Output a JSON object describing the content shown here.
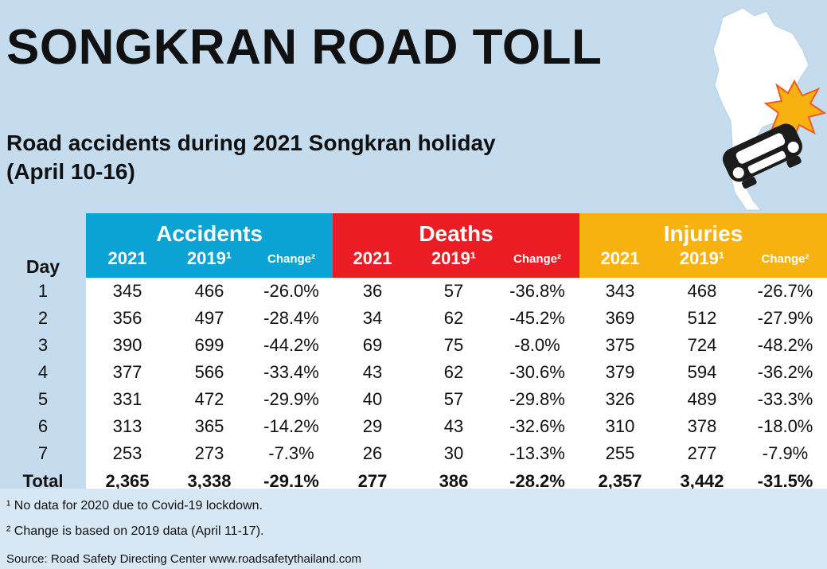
{
  "title": "SONGKRAN ROAD TOLL",
  "subtitle_line1": "Road accidents during 2021 Songkran holiday",
  "subtitle_line2": "(April 10-16)",
  "chart_data": {
    "type": "table",
    "groups": [
      "Accidents",
      "Deaths",
      "Injuries"
    ],
    "day_header": "Day",
    "subheaders": [
      "2021",
      "2019¹",
      "Change²"
    ],
    "rows": [
      {
        "day": "1",
        "cells": [
          "345",
          "466",
          "-26.0%",
          "36",
          "57",
          "-36.8%",
          "343",
          "468",
          "-26.7%"
        ]
      },
      {
        "day": "2",
        "cells": [
          "356",
          "497",
          "-28.4%",
          "34",
          "62",
          "-45.2%",
          "369",
          "512",
          "-27.9%"
        ]
      },
      {
        "day": "3",
        "cells": [
          "390",
          "699",
          "-44.2%",
          "69",
          "75",
          "-8.0%",
          "375",
          "724",
          "-48.2%"
        ]
      },
      {
        "day": "4",
        "cells": [
          "377",
          "566",
          "-33.4%",
          "43",
          "62",
          "-30.6%",
          "379",
          "594",
          "-36.2%"
        ]
      },
      {
        "day": "5",
        "cells": [
          "331",
          "472",
          "-29.9%",
          "40",
          "57",
          "-29.8%",
          "326",
          "489",
          "-33.3%"
        ]
      },
      {
        "day": "6",
        "cells": [
          "313",
          "365",
          "-14.2%",
          "29",
          "43",
          "-32.6%",
          "310",
          "378",
          "-18.0%"
        ]
      },
      {
        "day": "7",
        "cells": [
          "253",
          "273",
          "-7.3%",
          "26",
          "30",
          "-13.3%",
          "255",
          "277",
          "-7.9%"
        ]
      }
    ],
    "total": {
      "day": "Total",
      "cells": [
        "2,365",
        "3,338",
        "-29.1%",
        "277",
        "386",
        "-28.2%",
        "2,357",
        "3,442",
        "-31.5%"
      ]
    }
  },
  "colors": {
    "accidents": "#0aa3d3",
    "deaths": "#ec1c24",
    "injuries": "#f7b20f",
    "background": "#c4dcee"
  },
  "footnotes": [
    "¹ No data for 2020 due to Covid-19 lockdown.",
    "² Change is based on 2019 data (April 11-17)."
  ],
  "source": "Source: Road Safety Directing Center www.roadsafetythailand.com",
  "illustration_icon": "thailand-map-crash-car-icon"
}
